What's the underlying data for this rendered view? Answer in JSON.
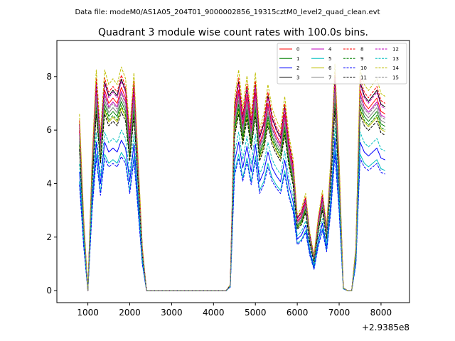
{
  "supertitle": "Data file: modeM0/AS1A05_204T01_9000002856_19315cztM0_level2_quad_clean.evt",
  "chart_data": {
    "type": "line",
    "title": "Quadrant 3 module wise count rates with 100.0s bins.",
    "xlabel": "",
    "ylabel": "",
    "offset_label": "+2.9385e8",
    "xlim": [
      260,
      8680
    ],
    "ylim": [
      -0.45,
      9.35
    ],
    "xticks": [
      1000,
      2000,
      3000,
      4000,
      5000,
      6000,
      7000,
      8000
    ],
    "xtick_labels": [
      "1000",
      "2000",
      "3000",
      "4000",
      "5000",
      "6000",
      "7000",
      "8000"
    ],
    "yticks": [
      0,
      2,
      4,
      6,
      8
    ],
    "ytick_labels": [
      "0",
      "2",
      "4",
      "6",
      "8"
    ],
    "legend": {
      "placement": "top-right",
      "columns": 4
    },
    "x": [
      800,
      900,
      1000,
      1100,
      1200,
      1300,
      1400,
      1500,
      1600,
      1700,
      1800,
      1900,
      2000,
      2100,
      2200,
      2300,
      2400,
      2500,
      2600,
      2700,
      2800,
      2900,
      3000,
      3100,
      3200,
      3300,
      3400,
      3500,
      3600,
      3700,
      3800,
      3900,
      4000,
      4100,
      4200,
      4300,
      4400,
      4500,
      4600,
      4700,
      4800,
      4900,
      5000,
      5100,
      5200,
      5300,
      5400,
      5500,
      5600,
      5700,
      5800,
      5900,
      6000,
      6100,
      6200,
      6300,
      6400,
      6500,
      6600,
      6700,
      6800,
      6900,
      7000,
      7100,
      7200,
      7300,
      7400,
      7500,
      7600,
      7700,
      7800,
      7900,
      8000,
      8100
    ],
    "base_profile": [
      6.0,
      2.5,
      0.0,
      4.5,
      7.5,
      5.4,
      7.5,
      7.0,
      7.2,
      7.0,
      7.6,
      7.2,
      5.5,
      7.4,
      4.5,
      1.5,
      0.0,
      0.0,
      0.0,
      0.0,
      0.0,
      0.0,
      0.0,
      0.0,
      0.0,
      0.0,
      0.0,
      0.0,
      0.0,
      0.0,
      0.0,
      0.0,
      0.0,
      0.0,
      0.0,
      0.0,
      0.2,
      6.5,
      7.5,
      6.2,
      7.3,
      6.0,
      7.4,
      5.5,
      6.0,
      7.0,
      6.2,
      5.8,
      5.5,
      6.6,
      5.3,
      4.5,
      2.6,
      2.8,
      3.3,
      2.0,
      1.2,
      2.5,
      3.4,
      2.2,
      4.5,
      7.7,
      4.5,
      0.1,
      0.0,
      0.0,
      1.5,
      7.5,
      7.0,
      6.8,
      7.0,
      7.2,
      6.7,
      6.6
    ],
    "series": [
      {
        "name": "0",
        "color": "#ff0000",
        "dash": false,
        "scale": 1.0
      },
      {
        "name": "1",
        "color": "#008000",
        "dash": false,
        "scale": 0.93
      },
      {
        "name": "2",
        "color": "#0000ff",
        "dash": false,
        "scale": 0.74
      },
      {
        "name": "3",
        "color": "#000000",
        "dash": false,
        "scale": 1.04
      },
      {
        "name": "4",
        "color": "#bf00bf",
        "dash": false,
        "scale": 0.98
      },
      {
        "name": "5",
        "color": "#00bfbf",
        "dash": false,
        "scale": 0.68
      },
      {
        "name": "6",
        "color": "#bfbf00",
        "dash": false,
        "scale": 0.9
      },
      {
        "name": "7",
        "color": "#808080",
        "dash": false,
        "scale": 0.95
      },
      {
        "name": "8",
        "color": "#ff0000",
        "dash": true,
        "scale": 1.06
      },
      {
        "name": "9",
        "color": "#008000",
        "dash": true,
        "scale": 0.91
      },
      {
        "name": "10",
        "color": "#0000ff",
        "dash": true,
        "scale": 0.66
      },
      {
        "name": "11",
        "color": "#000000",
        "dash": true,
        "scale": 0.88
      },
      {
        "name": "12",
        "color": "#bf00bf",
        "dash": true,
        "scale": 1.03
      },
      {
        "name": "13",
        "color": "#00bfbf",
        "dash": true,
        "scale": 0.79
      },
      {
        "name": "14",
        "color": "#bfbf00",
        "dash": true,
        "scale": 1.1
      },
      {
        "name": "15",
        "color": "#808080",
        "dash": true,
        "scale": 0.97
      }
    ]
  }
}
